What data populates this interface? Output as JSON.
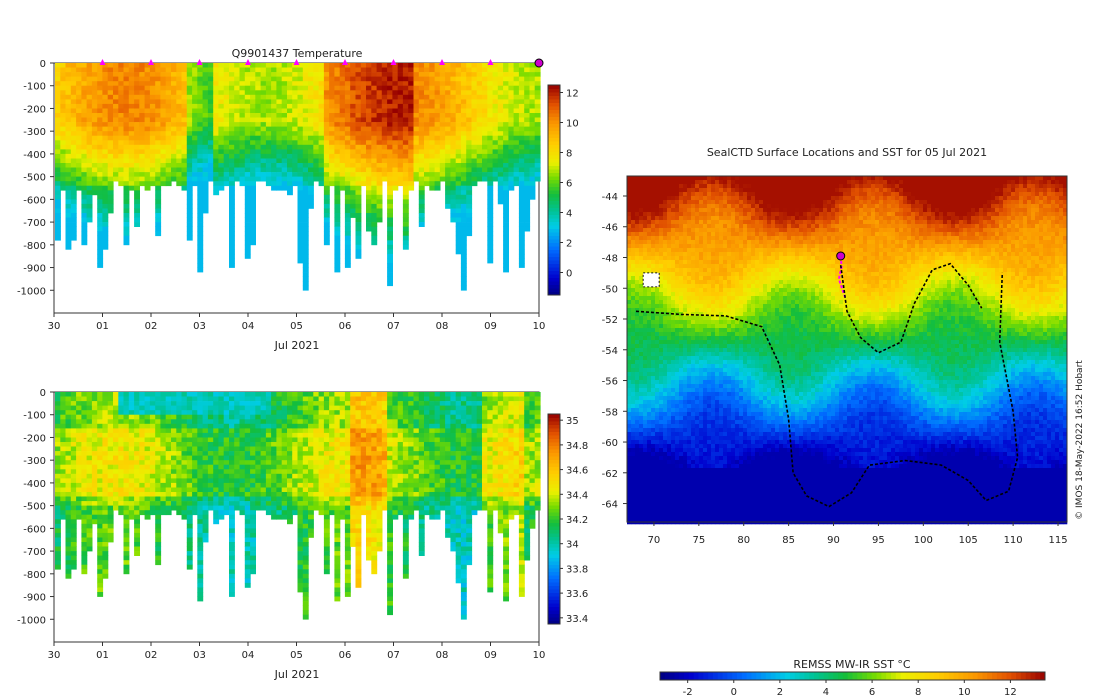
{
  "chart_data": [
    {
      "type": "heatmap",
      "id": "temperature-section",
      "title": "Q9901437  Temperature",
      "xlabel": "Jul 2021",
      "x_tick_labels": [
        "30",
        "01",
        "02",
        "03",
        "04",
        "05",
        "06",
        "07",
        "08",
        "09",
        "10"
      ],
      "y_ticks": [
        0,
        -100,
        -200,
        -300,
        -400,
        -500,
        -600,
        -700,
        -800,
        -900,
        -1000
      ],
      "ylim": [
        -1100,
        0
      ],
      "colorbar": {
        "ticks": [
          0,
          2,
          4,
          6,
          8,
          10,
          12
        ],
        "range": [
          -1.5,
          12.5
        ]
      },
      "profile_markers_days": [
        1,
        2,
        3,
        4,
        5,
        6,
        7,
        8,
        9
      ],
      "current_profile_day": 10
    },
    {
      "type": "heatmap",
      "id": "salinity-section",
      "title": "",
      "xlabel": "Jul 2021",
      "x_tick_labels": [
        "30",
        "01",
        "02",
        "03",
        "04",
        "05",
        "06",
        "07",
        "08",
        "09",
        "10"
      ],
      "y_ticks": [
        0,
        -100,
        -200,
        -300,
        -400,
        -500,
        -600,
        -700,
        -800,
        -900,
        -1000
      ],
      "ylim": [
        -1100,
        0
      ],
      "colorbar": {
        "ticks": [
          33.4,
          33.6,
          33.8,
          34,
          34.2,
          34.4,
          34.6,
          34.8,
          35
        ],
        "tick_labels": [
          "33.4",
          "33.6",
          "33.8",
          "34",
          "34.2",
          "34.4",
          "34.6",
          "34.8",
          "35"
        ],
        "range": [
          33.35,
          35.05
        ]
      }
    },
    {
      "type": "heatmap",
      "id": "sst-map",
      "title": "SealCTD Surface Locations and SST for 05 Jul 2021",
      "x_tick_labels": [
        "70",
        "75",
        "80",
        "85",
        "90",
        "95",
        "100",
        "105",
        "110",
        "115"
      ],
      "x_ticks": [
        70,
        75,
        80,
        85,
        90,
        95,
        100,
        105,
        110,
        115
      ],
      "y_tick_labels": [
        "-44",
        "-46",
        "-48",
        "-50",
        "-52",
        "-54",
        "-56",
        "-58",
        "-60",
        "-62",
        "-64"
      ],
      "y_ticks": [
        -44,
        -46,
        -48,
        -50,
        -52,
        -54,
        -56,
        -58,
        -60,
        -62,
        -64
      ],
      "xlim": [
        67,
        116
      ],
      "ylim": [
        -65.2,
        -42.7
      ],
      "seal_position": {
        "lon": 90.8,
        "lat": -47.9
      },
      "colorbar": {
        "label": "REMSS MW-IR SST °C",
        "ticks": [
          "-2",
          "0",
          "2",
          "4",
          "6",
          "8",
          "10",
          "12"
        ],
        "tick_values": [
          -2,
          0,
          2,
          4,
          6,
          8,
          10,
          12
        ],
        "range": [
          -3.2,
          13.5
        ]
      },
      "credit": "© IMOS 18-May-2022 16:52 Hobart"
    }
  ]
}
